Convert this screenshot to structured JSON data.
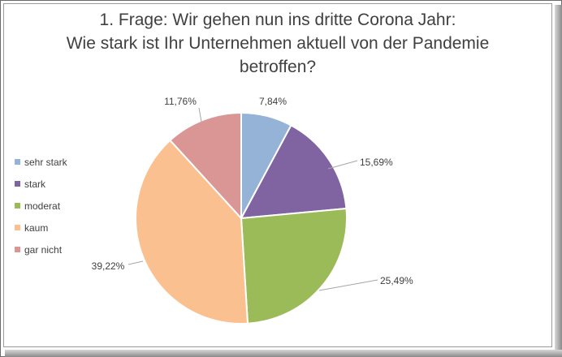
{
  "chart_data": {
    "type": "pie",
    "title_lines": [
      "1. Frage: Wir gehen nun ins dritte Corona Jahr:",
      "Wie stark ist Ihr Unternehmen aktuell von der Pandemie",
      "betroffen?"
    ],
    "legend_position": "left",
    "slices": [
      {
        "name": "sehr stark",
        "value": 7.84,
        "label": "7,84%",
        "color": "#95b3d7"
      },
      {
        "name": "stark",
        "value": 15.69,
        "label": "15,69%",
        "color": "#8064a2"
      },
      {
        "name": "moderat",
        "value": 25.49,
        "label": "25,49%",
        "color": "#9bbb59"
      },
      {
        "name": "kaum",
        "value": 39.22,
        "label": "39,22%",
        "color": "#fac090"
      },
      {
        "name": "gar nicht",
        "value": 11.76,
        "label": "11,76%",
        "color": "#d99694"
      }
    ]
  }
}
